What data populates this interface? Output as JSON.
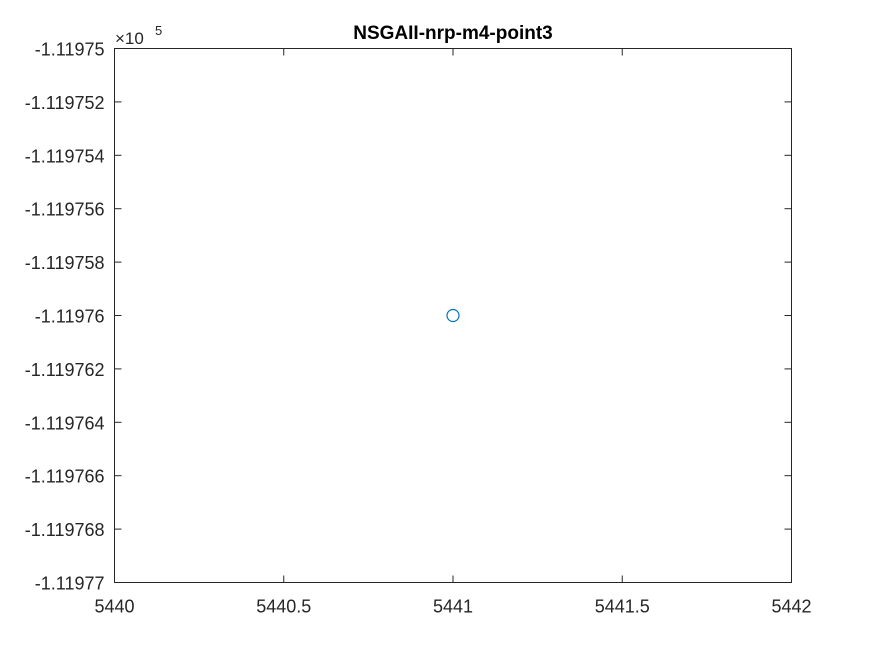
{
  "chart_data": {
    "type": "scatter",
    "title": "NSGAII-nrp-m4-point3",
    "xlabel": "",
    "ylabel": "",
    "xlim": [
      5440,
      5442
    ],
    "ylim": [
      -1.11977,
      -1.11975
    ],
    "y_exponent_multiplier": "×10",
    "y_exponent_power": "5",
    "x_ticks": [
      {
        "value": 5440,
        "label": "5440"
      },
      {
        "value": 5440.5,
        "label": "5440.5"
      },
      {
        "value": 5441,
        "label": "5441"
      },
      {
        "value": 5441.5,
        "label": "5441.5"
      },
      {
        "value": 5442,
        "label": "5442"
      }
    ],
    "y_ticks": [
      {
        "value": -1.11975,
        "label": "-1.11975"
      },
      {
        "value": -1.119752,
        "label": "-1.119752"
      },
      {
        "value": -1.119754,
        "label": "-1.119754"
      },
      {
        "value": -1.119756,
        "label": "-1.119756"
      },
      {
        "value": -1.119758,
        "label": "-1.119758"
      },
      {
        "value": -1.11976,
        "label": "-1.11976"
      },
      {
        "value": -1.119762,
        "label": "-1.119762"
      },
      {
        "value": -1.119764,
        "label": "-1.119764"
      },
      {
        "value": -1.119766,
        "label": "-1.119766"
      },
      {
        "value": -1.119768,
        "label": "-1.119768"
      },
      {
        "value": -1.11977,
        "label": "-1.11977"
      }
    ],
    "series": [
      {
        "marker": "circle-open",
        "color": "#0072BD",
        "points": [
          {
            "x": 5441,
            "y": -1.11976
          }
        ]
      }
    ],
    "grid": false,
    "legend": "none",
    "box": true
  }
}
